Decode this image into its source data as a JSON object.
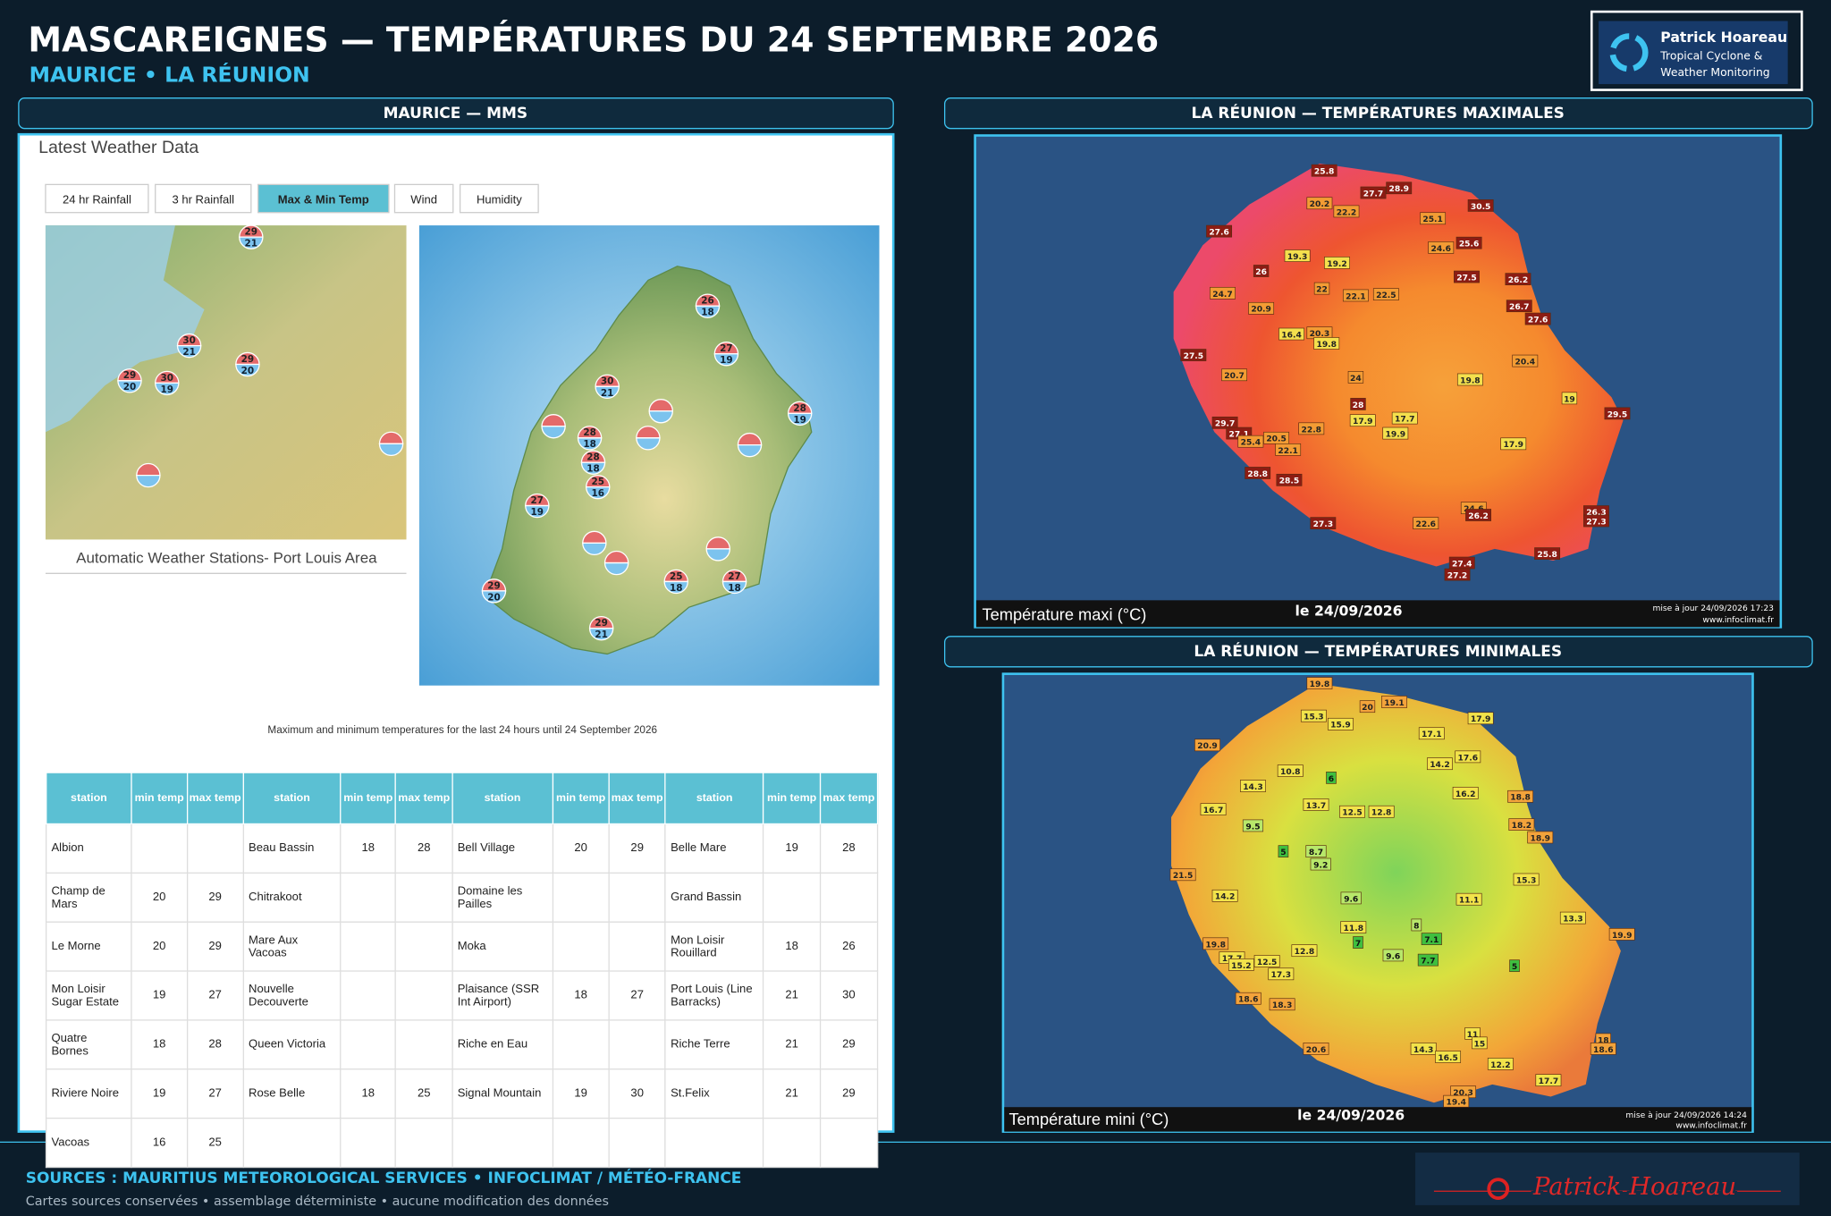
{
  "header": {
    "title": "MASCAREIGNES — TEMPÉRATURES DU 24 SEPTEMBRE 2026",
    "subtitle": "MAURICE • LA RÉUNION"
  },
  "logo": {
    "name": "Patrick Hoareau",
    "tagline_1": "Tropical Cyclone &",
    "tagline_2": "Weather Monitoring"
  },
  "maurice": {
    "panel_title": "MAURICE — MMS",
    "page_title": "Latest Weather Data",
    "tabs": [
      "24 hr Rainfall",
      "3 hr Rainfall",
      "Max & Min Temp",
      "Wind",
      "Humidity"
    ],
    "active_tab": "Max & Min Temp",
    "port_louis_map": {
      "caption": "Automatic Weather Stations- Port Louis Area",
      "markers": [
        [
          29,
          21
        ],
        [
          30,
          21
        ],
        [
          29,
          20
        ],
        [
          29,
          20
        ],
        [
          30,
          19
        ]
      ]
    },
    "island_map": {
      "markers": [
        [
          26,
          18
        ],
        [
          27,
          19
        ],
        [
          30,
          21
        ],
        [
          28,
          19
        ],
        [
          28,
          18
        ],
        [
          28,
          18
        ],
        [
          25,
          16
        ],
        [
          27,
          19
        ],
        [
          25,
          18
        ],
        [
          27,
          18
        ],
        [
          29,
          20
        ],
        [
          29,
          21
        ]
      ]
    },
    "table_caption": "Maximum and minimum temperatures for the last 24 hours until 24 September 2026",
    "table": {
      "columns": [
        "station",
        "min temp",
        "max temp",
        "station",
        "min temp",
        "max temp",
        "station",
        "min temp",
        "max temp",
        "station",
        "min temp",
        "max temp"
      ],
      "rows": [
        [
          "Albion",
          null,
          null,
          "Beau Bassin",
          18,
          28,
          "Bell Village",
          20,
          29,
          "Belle Mare",
          19,
          28
        ],
        [
          "Champ de Mars",
          20,
          29,
          "Chitrakoot",
          null,
          null,
          "Domaine les Pailles",
          null,
          null,
          "Grand Bassin",
          null,
          null
        ],
        [
          "Le Morne",
          20,
          29,
          "Mare Aux Vacoas",
          null,
          null,
          "Moka",
          null,
          null,
          "Mon Loisir Rouillard",
          18,
          26
        ],
        [
          "Mon Loisir Sugar Estate",
          19,
          27,
          "Nouvelle Decouverte",
          null,
          null,
          "Plaisance (SSR Int Airport)",
          18,
          27,
          "Port Louis (Line Barracks)",
          21,
          30
        ],
        [
          "Quatre Bornes",
          18,
          28,
          "Queen Victoria",
          null,
          null,
          "Riche en Eau",
          null,
          null,
          "Riche Terre",
          21,
          29
        ],
        [
          "Riviere Noire",
          19,
          27,
          "Rose Belle",
          18,
          25,
          "Signal Mountain",
          19,
          30,
          "St.Felix",
          21,
          29
        ],
        [
          "Vacoas",
          16,
          25,
          null,
          null,
          null,
          null,
          null,
          null,
          null,
          null,
          null
        ]
      ]
    }
  },
  "reunion_max": {
    "panel_title": "LA RÉUNION — TEMPÉRATURES MAXIMALES",
    "legend": "Température maxi (°C)",
    "date": "le 24/09/2026",
    "updated": "mise à jour 24/09/2026 17:23",
    "source": "www.infoclimat.fr",
    "values": [
      25.8,
      27.7,
      28.9,
      20.2,
      22.2,
      30.5,
      25.1,
      27.6,
      19.3,
      24.6,
      25.6,
      26,
      19.2,
      27.5,
      26.2,
      22,
      22.1,
      22.5,
      24.7,
      20.9,
      26.7,
      27.6,
      16.4,
      20.3,
      19.8,
      27.5,
      20.4,
      20.7,
      24,
      19.8,
      19,
      28,
      29.5,
      29.7,
      17.9,
      17.7,
      27.1,
      25.4,
      20.5,
      22.8,
      19.9,
      22.1,
      17.9,
      28.8,
      28.5,
      24.6,
      26.2,
      26.3,
      27.3,
      27.3,
      22.6,
      25.8,
      27.4,
      27.2
    ]
  },
  "reunion_min": {
    "panel_title": "LA RÉUNION — TEMPÉRATURES MINIMALES",
    "legend": "Température mini (°C)",
    "date": "le 24/09/2026",
    "updated": "mise à jour 24/09/2026 14:24",
    "source": "www.infoclimat.fr",
    "values": [
      19.8,
      20,
      19.1,
      15.3,
      15.9,
      17.9,
      17.1,
      20.9,
      17.6,
      14.2,
      10.8,
      6,
      14.3,
      16.2,
      18.8,
      13.7,
      12.5,
      12.8,
      16.7,
      9.5,
      18.2,
      18.9,
      5,
      8.7,
      9.2,
      21.5,
      15.3,
      14.2,
      9.6,
      11.1,
      13.3,
      8,
      11.8,
      7.1,
      19.9,
      19.8,
      7,
      12.8,
      9.6,
      7.7,
      17.7,
      15.2,
      12.5,
      5,
      17.3,
      18.6,
      18.3,
      11,
      15,
      18,
      18.6,
      20.6,
      14.3,
      16.5,
      12.2,
      17.7,
      20.3,
      19.4
    ]
  },
  "footer": {
    "sources": "SOURCES : MAURITIUS METEOROLOGICAL SERVICES • INFOCLIMAT / MÉTÉO-FRANCE",
    "note": "Cartes sources conservées • assemblage déterministe • aucune modification des données",
    "signature": "Patrick Hoareau"
  }
}
